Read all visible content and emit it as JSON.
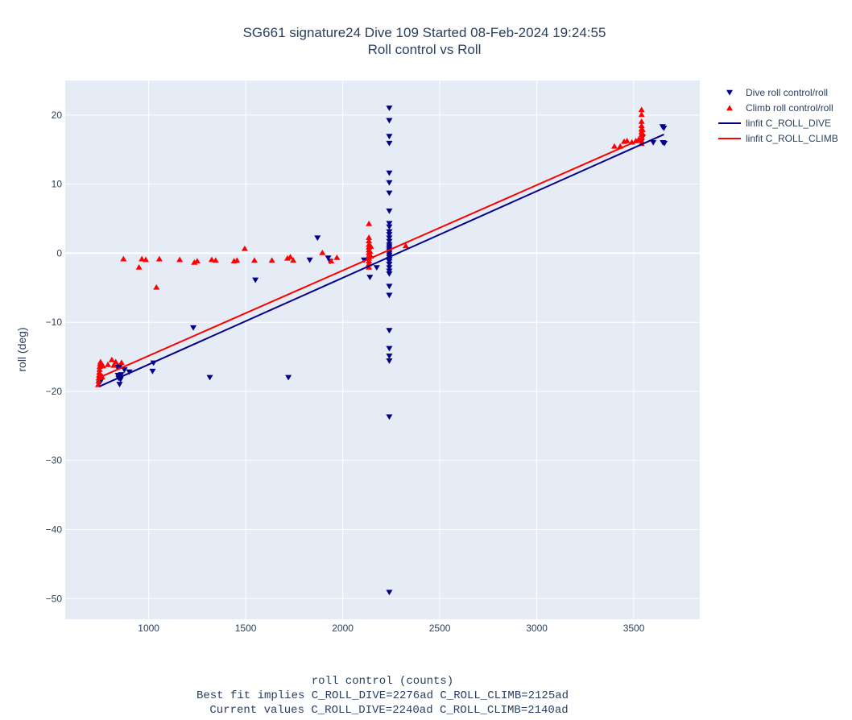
{
  "chart_data": {
    "type": "scatter",
    "title": "SG661 signature24 Dive 109 Started 08-Feb-2024 19:24:55",
    "subtitle": "Roll control vs Roll",
    "xlabel_lines": [
      "roll control (counts)",
      "Best fit implies C_ROLL_DIVE=2276ad C_ROLL_CLIMB=2125ad",
      "Current values C_ROLL_DIVE=2240ad C_ROLL_CLIMB=2140ad"
    ],
    "ylabel": "roll (deg)",
    "xlim": [
      570,
      3840
    ],
    "ylim": [
      -53,
      25
    ],
    "x_ticks": [
      1000,
      1500,
      2000,
      2500,
      3000,
      3500
    ],
    "y_ticks": [
      -50,
      -40,
      -30,
      -20,
      -10,
      0,
      10,
      20
    ],
    "plot_bg": "#e5ecf6",
    "grid": true,
    "legend_position": "top-right",
    "series": [
      {
        "name": "Dive roll control/roll",
        "kind": "marker",
        "marker": "triangle-down",
        "color": "#00008b",
        "points": [
          [
            745,
            -18.8
          ],
          [
            748,
            -18.3
          ],
          [
            750,
            -17.9
          ],
          [
            752,
            -18.6
          ],
          [
            755,
            -18.1
          ],
          [
            838,
            -16.5
          ],
          [
            842,
            -17.7
          ],
          [
            845,
            -18.1
          ],
          [
            848,
            -17.9
          ],
          [
            850,
            -19.0
          ],
          [
            852,
            -16.4
          ],
          [
            855,
            -18.3
          ],
          [
            858,
            -17.6
          ],
          [
            875,
            -16.9
          ],
          [
            900,
            -17.2
          ],
          [
            1020,
            -17.1
          ],
          [
            1025,
            -15.9
          ],
          [
            1230,
            -10.8
          ],
          [
            1315,
            -18.0
          ],
          [
            1720,
            -18.0
          ],
          [
            1550,
            -3.9
          ],
          [
            1830,
            -1.0
          ],
          [
            1870,
            2.2
          ],
          [
            1925,
            -0.7
          ],
          [
            1935,
            -1.2
          ],
          [
            2110,
            -1.0
          ],
          [
            2140,
            -3.5
          ],
          [
            2175,
            -2.1
          ],
          [
            2240,
            21.0
          ],
          [
            2240,
            19.2
          ],
          [
            2240,
            16.9
          ],
          [
            2240,
            15.9
          ],
          [
            2240,
            11.6
          ],
          [
            2240,
            10.2
          ],
          [
            2240,
            8.7
          ],
          [
            2240,
            6.1
          ],
          [
            2240,
            4.3
          ],
          [
            2240,
            3.8
          ],
          [
            2240,
            3.1
          ],
          [
            2240,
            2.7
          ],
          [
            2240,
            2.2
          ],
          [
            2240,
            1.7
          ],
          [
            2240,
            1.2
          ],
          [
            2240,
            0.9
          ],
          [
            2240,
            0.6
          ],
          [
            2240,
            0.3
          ],
          [
            2240,
            0.0
          ],
          [
            2240,
            -0.3
          ],
          [
            2240,
            -0.6
          ],
          [
            2240,
            -0.9
          ],
          [
            2240,
            -1.2
          ],
          [
            2240,
            -1.6
          ],
          [
            2240,
            -2.1
          ],
          [
            2240,
            -2.6
          ],
          [
            2240,
            -3.0
          ],
          [
            2240,
            -4.8
          ],
          [
            2240,
            -6.1
          ],
          [
            2240,
            -11.2
          ],
          [
            2240,
            -13.8
          ],
          [
            2240,
            -14.9
          ],
          [
            2240,
            -15.6
          ],
          [
            2240,
            -23.7
          ],
          [
            2240,
            -49.1
          ],
          [
            3540,
            16.2
          ],
          [
            3545,
            16.8
          ],
          [
            3600,
            16.0
          ],
          [
            3648,
            18.3
          ],
          [
            3655,
            18.1
          ],
          [
            3650,
            16.0
          ],
          [
            3658,
            15.9
          ]
        ]
      },
      {
        "name": "Climb roll control/roll",
        "kind": "marker",
        "marker": "triangle-up",
        "color": "#ff0000",
        "points": [
          [
            740,
            -19.0
          ],
          [
            742,
            -18.5
          ],
          [
            744,
            -18.0
          ],
          [
            745,
            -17.6
          ],
          [
            746,
            -17.2
          ],
          [
            747,
            -16.8
          ],
          [
            748,
            -16.4
          ],
          [
            750,
            -16.0
          ],
          [
            752,
            -15.7
          ],
          [
            760,
            -17.9
          ],
          [
            765,
            -16.3
          ],
          [
            790,
            -16.1
          ],
          [
            810,
            -15.4
          ],
          [
            820,
            -16.2
          ],
          [
            830,
            -15.7
          ],
          [
            860,
            -15.8
          ],
          [
            870,
            -0.8
          ],
          [
            950,
            -2.0
          ],
          [
            965,
            -0.8
          ],
          [
            985,
            -0.9
          ],
          [
            1040,
            -4.9
          ],
          [
            1055,
            -0.8
          ],
          [
            1160,
            -0.9
          ],
          [
            1235,
            -1.3
          ],
          [
            1250,
            -1.1
          ],
          [
            1325,
            -0.9
          ],
          [
            1345,
            -1.0
          ],
          [
            1440,
            -1.1
          ],
          [
            1455,
            -1.0
          ],
          [
            1495,
            0.7
          ],
          [
            1545,
            -1.0
          ],
          [
            1635,
            -1.0
          ],
          [
            1715,
            -0.7
          ],
          [
            1730,
            -0.5
          ],
          [
            1745,
            -1.0
          ],
          [
            1895,
            0.1
          ],
          [
            1940,
            -1.1
          ],
          [
            1970,
            -0.6
          ],
          [
            2325,
            1.1
          ],
          [
            2135,
            4.3
          ],
          [
            2135,
            2.3
          ],
          [
            2135,
            1.8
          ],
          [
            2135,
            1.3
          ],
          [
            2135,
            0.9
          ],
          [
            2135,
            0.5
          ],
          [
            2135,
            0.1
          ],
          [
            2135,
            -0.3
          ],
          [
            2135,
            -0.7
          ],
          [
            2135,
            -1.1
          ],
          [
            2135,
            -1.5
          ],
          [
            2135,
            -2.0
          ],
          [
            2140,
            0.3
          ],
          [
            2145,
            -0.4
          ],
          [
            2145,
            1.0
          ],
          [
            3400,
            15.5
          ],
          [
            3430,
            15.5
          ],
          [
            3450,
            16.2
          ],
          [
            3465,
            16.3
          ],
          [
            3490,
            16.1
          ],
          [
            3510,
            16.3
          ],
          [
            3525,
            16.5
          ],
          [
            3540,
            20.8
          ],
          [
            3540,
            20.1
          ],
          [
            3540,
            19.1
          ],
          [
            3540,
            18.5
          ],
          [
            3540,
            18.0
          ],
          [
            3540,
            17.6
          ],
          [
            3540,
            17.2
          ],
          [
            3540,
            16.8
          ],
          [
            3540,
            16.3
          ],
          [
            3540,
            15.9
          ],
          [
            3545,
            17.9
          ],
          [
            3545,
            17.3
          ]
        ]
      },
      {
        "name": "linfit C_ROLL_DIVE",
        "kind": "line",
        "color": "#00008b",
        "points": [
          [
            745,
            -19.3
          ],
          [
            3655,
            17.2
          ]
        ]
      },
      {
        "name": "linfit C_ROLL_CLIMB",
        "kind": "line",
        "color": "#ff0000",
        "points": [
          [
            745,
            -18.0
          ],
          [
            3545,
            16.6
          ]
        ]
      }
    ]
  }
}
